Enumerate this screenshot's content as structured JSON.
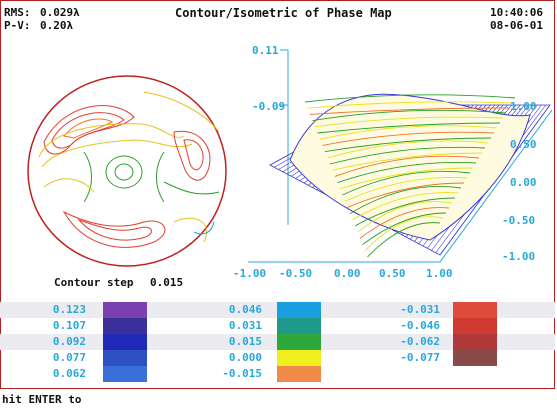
{
  "header": {
    "rms_label": "RMS:",
    "rms_value": "0.029λ",
    "pv_label": "P-V:",
    "pv_value": "0.20λ",
    "title": "Contour/Isometric of Phase Map",
    "time": "10:40:06",
    "date": "08-06-01"
  },
  "isometric": {
    "z_top": "0.11",
    "z_bottom": "-0.09",
    "x_ticks": [
      "-1.00",
      "-0.50",
      "0.00",
      "0.50",
      "1.00"
    ],
    "y_ticks": [
      "1.00",
      "0.50",
      "0.00",
      "-0.50",
      "-1.00"
    ]
  },
  "contour": {
    "step_label": "Contour step",
    "step_value": "0.015"
  },
  "legend": {
    "col1": [
      {
        "label": "0.123",
        "color": "#7a3fb0"
      },
      {
        "label": "0.107",
        "color": "#3b2f9a"
      },
      {
        "label": "0.092",
        "color": "#1f2ab8"
      },
      {
        "label": "0.077",
        "color": "#2e4fc4"
      },
      {
        "label": "0.062",
        "color": "#3a6fd8"
      }
    ],
    "col2": [
      {
        "label": "0.046",
        "color": "#1aa0e0"
      },
      {
        "label": "0.031",
        "color": "#1f9a8a"
      },
      {
        "label": "0.015",
        "color": "#2ea83a"
      },
      {
        "label": "0.000",
        "color": "#f0f020"
      },
      {
        "label": "-0.015",
        "color": "#f08a4a"
      }
    ],
    "col3": [
      {
        "label": "-0.031",
        "color": "#e04a3a"
      },
      {
        "label": "-0.046",
        "color": "#d03a30"
      },
      {
        "label": "-0.062",
        "color": "#b03a3a"
      },
      {
        "label": "-0.077",
        "color": "#8a4a4a"
      }
    ]
  },
  "prompt": {
    "text": "hit ENTER to"
  },
  "colors": {
    "frame": "#b02020",
    "axis": "#2aa8d8",
    "mesh_blue": "#3a3ad0",
    "mesh_green": "#28a028",
    "mesh_yellow": "#e8e020",
    "mesh_orange": "#f07030"
  }
}
